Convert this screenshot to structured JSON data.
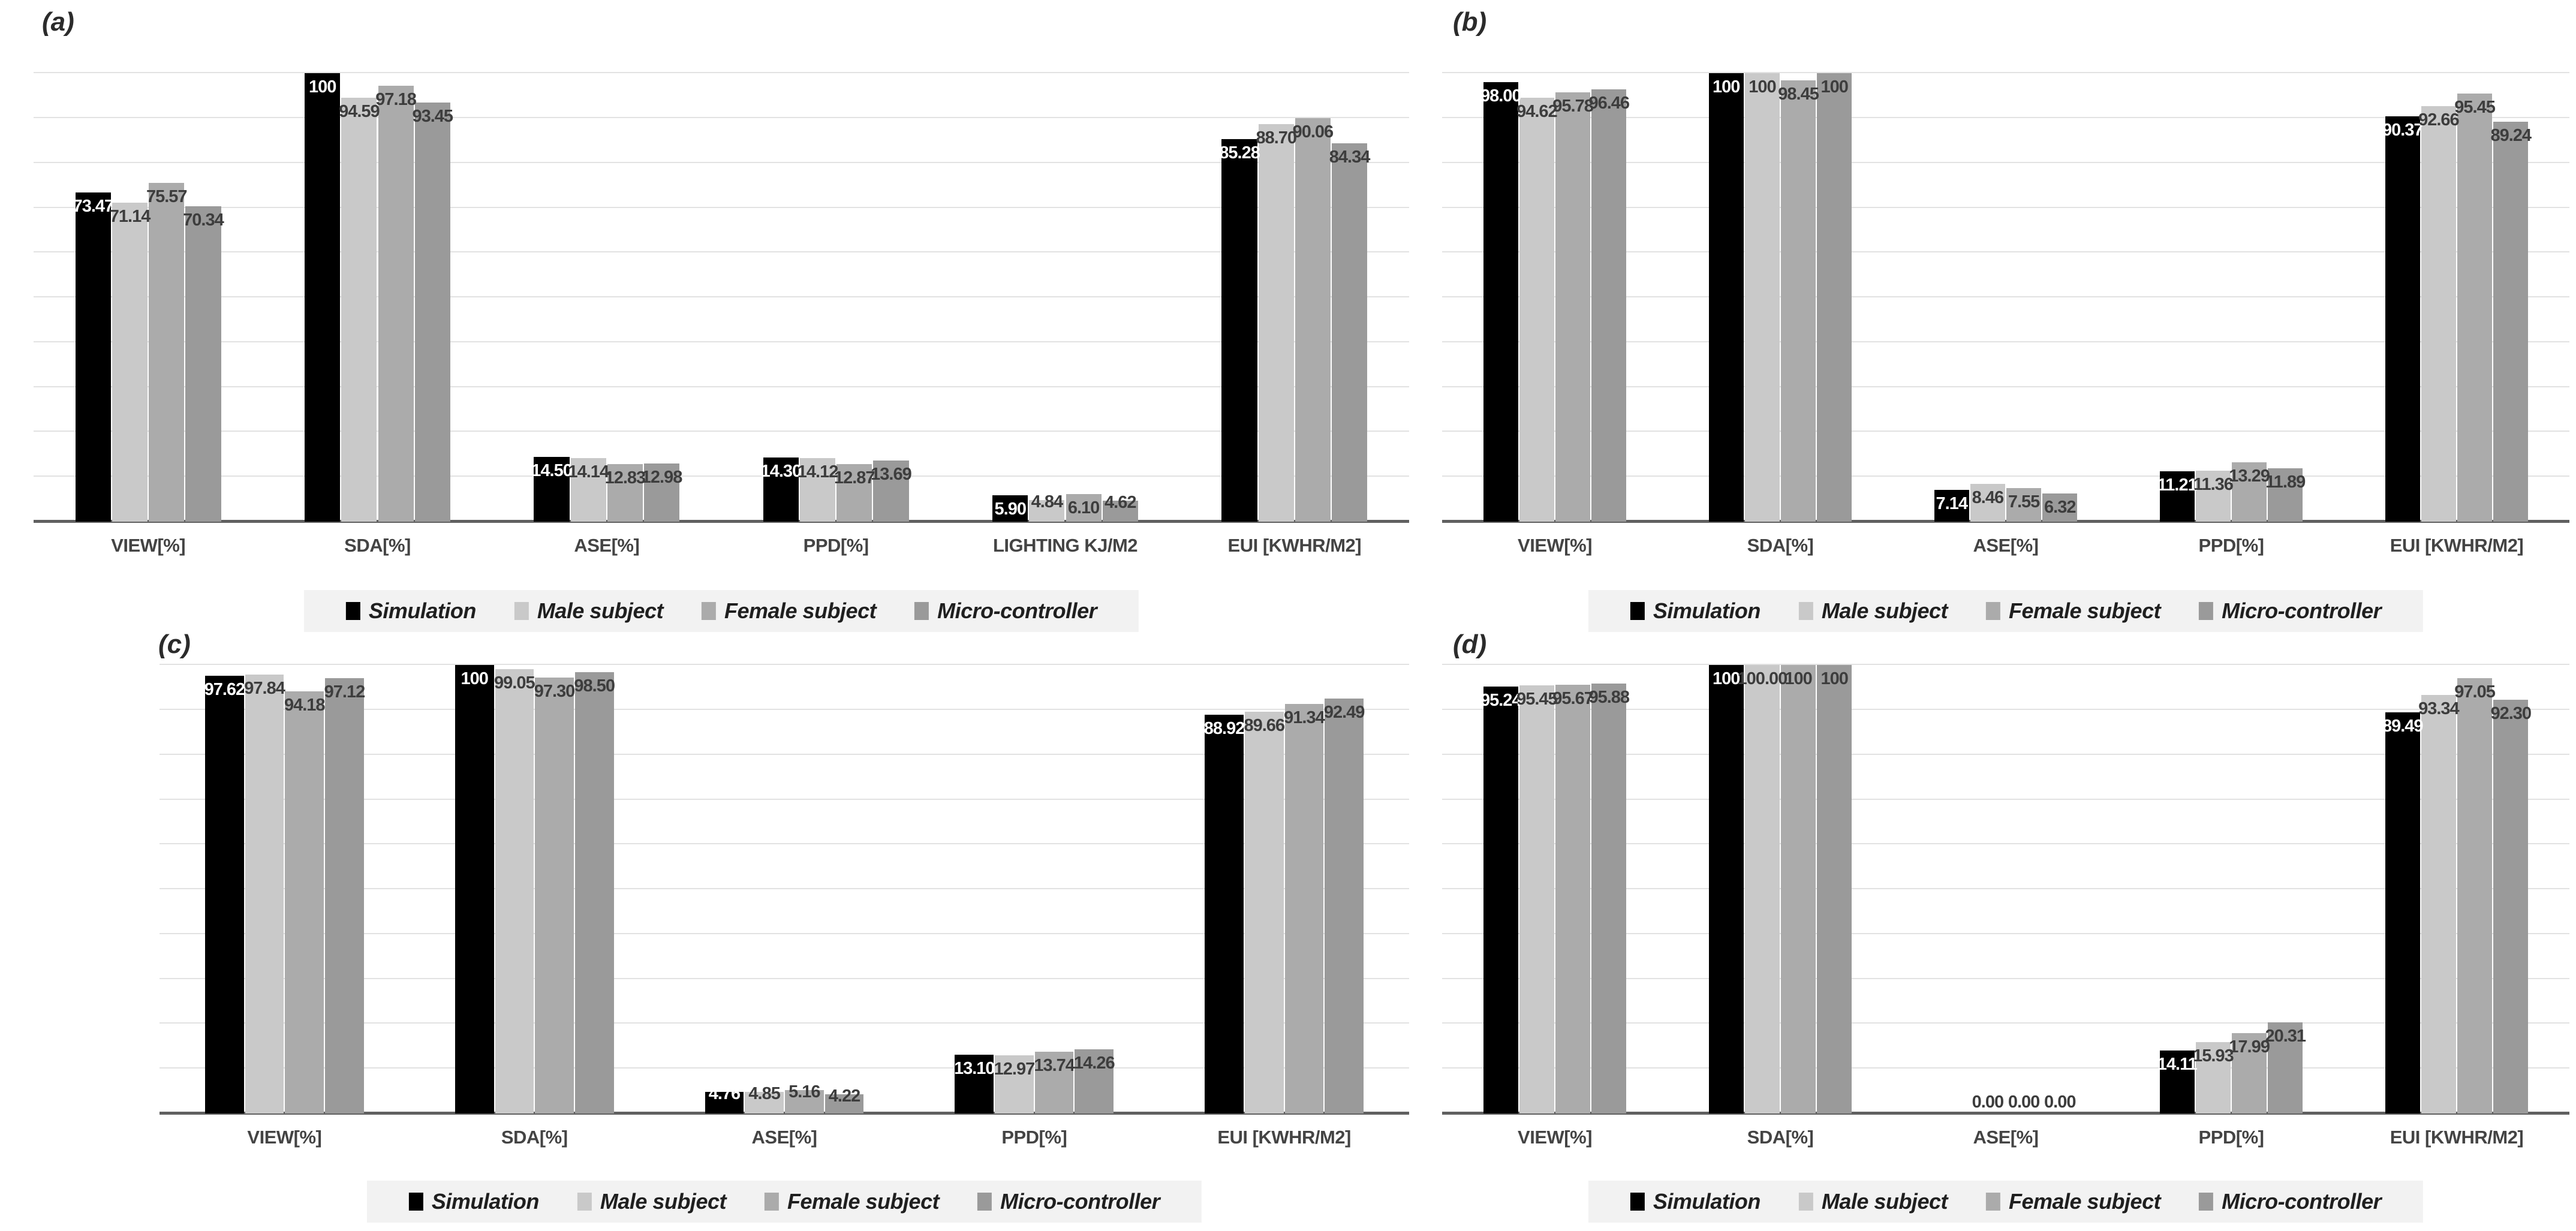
{
  "figure": {
    "background": "#ffffff",
    "gridline_color": "#e2e2e2",
    "axis_line_color": "#606060",
    "legend_strip_color": "#f2f2f2",
    "value_label_color_on_black": "#ffffff",
    "value_label_color_on_gray": "#3d3d3d",
    "category_label_color": "#444444"
  },
  "legend": {
    "items": [
      {
        "label": "Simulation",
        "color": "#000000"
      },
      {
        "label": "Male subject",
        "color": "#c9c9c9"
      },
      {
        "label": "Female subject",
        "color": "#ababab"
      },
      {
        "label": "Micro-controller",
        "color": "#9a9a9a"
      }
    ]
  },
  "chart_data": [
    {
      "panel": "(a)",
      "type": "bar",
      "grid": true,
      "legend_position": "bottom",
      "ylim": [
        0,
        111
      ],
      "gridline_step": 10,
      "categories": [
        "VIEW[%]",
        "SDA[%]",
        "ASE[%]",
        "PPD[%]",
        "LIGHTING KJ/M2",
        "EUI [KWHR/M2]"
      ],
      "series": [
        {
          "name": "Simulation",
          "values": [
            73.47,
            100,
            14.5,
            14.3,
            5.9,
            85.28
          ],
          "labels": [
            "73.47",
            "100",
            "14.50",
            "14.30",
            "5.90",
            "85.28"
          ]
        },
        {
          "name": "Male subject",
          "values": [
            71.14,
            94.59,
            14.14,
            14.12,
            4.84,
            88.7
          ],
          "labels": [
            "71.14",
            "94.59",
            "14.14",
            "14.12",
            "4.84",
            "88.70"
          ]
        },
        {
          "name": "Female subject",
          "values": [
            75.57,
            97.18,
            12.83,
            12.87,
            6.1,
            90.06
          ],
          "labels": [
            "75.57",
            "97.18",
            "12.83",
            "12.87",
            "6.10",
            "90.06"
          ]
        },
        {
          "name": "Micro-controller",
          "values": [
            70.34,
            93.45,
            12.98,
            13.69,
            4.62,
            84.34
          ],
          "labels": [
            "70.34",
            "93.45",
            "12.98",
            "13.69",
            "4.62",
            "84.34"
          ]
        }
      ]
    },
    {
      "panel": "(b)",
      "type": "bar",
      "grid": true,
      "legend_position": "bottom",
      "ylim": [
        0,
        111
      ],
      "gridline_step": 10,
      "categories": [
        "VIEW[%]",
        "SDA[%]",
        "ASE[%]",
        "PPD[%]",
        "EUI [KWHR/M2]"
      ],
      "series": [
        {
          "name": "Simulation",
          "values": [
            98.0,
            100,
            7.14,
            11.21,
            90.37
          ],
          "labels": [
            "98.00",
            "100",
            "7.14",
            "11.21",
            "90.37"
          ]
        },
        {
          "name": "Male subject",
          "values": [
            94.62,
            100,
            8.46,
            11.36,
            92.66
          ],
          "labels": [
            "94.62",
            "100",
            "8.46",
            "11.36",
            "92.66"
          ]
        },
        {
          "name": "Female subject",
          "values": [
            95.78,
            98.45,
            7.55,
            13.29,
            95.45
          ],
          "labels": [
            "95.78",
            "98.45",
            "7.55",
            "13.29",
            "95.45"
          ]
        },
        {
          "name": "Micro-controller",
          "values": [
            96.46,
            100,
            6.32,
            11.89,
            89.24
          ],
          "labels": [
            "96.46",
            "100",
            "6.32",
            "11.89",
            "89.24"
          ]
        }
      ]
    },
    {
      "panel": "(c)",
      "type": "bar",
      "grid": true,
      "legend_position": "bottom",
      "ylim": [
        0,
        111
      ],
      "gridline_step": 10,
      "categories": [
        "VIEW[%]",
        "SDA[%]",
        "ASE[%]",
        "PPD[%]",
        "EUI [KWHR/M2]"
      ],
      "series": [
        {
          "name": "Simulation",
          "values": [
            97.62,
            100,
            4.76,
            13.1,
            88.92
          ],
          "labels": [
            "97.62",
            "100",
            "4.76",
            "13.10",
            "88.92"
          ]
        },
        {
          "name": "Male subject",
          "values": [
            97.84,
            99.05,
            4.85,
            12.97,
            89.66
          ],
          "labels": [
            "97.84",
            "99.05",
            "4.85",
            "12.97",
            "89.66"
          ]
        },
        {
          "name": "Female subject",
          "values": [
            94.18,
            97.3,
            5.16,
            13.74,
            91.34
          ],
          "labels": [
            "94.18",
            "97.30",
            "5.16",
            "13.74",
            "91.34"
          ]
        },
        {
          "name": "Micro-controller",
          "values": [
            97.12,
            98.5,
            4.22,
            14.26,
            92.49
          ],
          "labels": [
            "97.12",
            "98.50",
            "4.22",
            "14.26",
            "92.49"
          ]
        }
      ]
    },
    {
      "panel": "(d)",
      "type": "bar",
      "grid": true,
      "legend_position": "bottom",
      "ylim": [
        0,
        111
      ],
      "gridline_step": 10,
      "categories": [
        "VIEW[%]",
        "SDA[%]",
        "ASE[%]",
        "PPD[%]",
        "EUI [KWHR/M2]"
      ],
      "series": [
        {
          "name": "Simulation",
          "values": [
            95.24,
            100,
            0,
            14.11,
            89.49
          ],
          "labels": [
            "95.24",
            "100",
            "0.00",
            "14.11",
            "89.49"
          ]
        },
        {
          "name": "Male subject",
          "values": [
            95.45,
            100.0,
            0,
            15.93,
            93.34
          ],
          "labels": [
            "95.45",
            "100.00",
            "0.00",
            "15.93",
            "93.34"
          ]
        },
        {
          "name": "Female subject",
          "values": [
            95.67,
            100,
            0,
            17.99,
            97.05
          ],
          "labels": [
            "95.67",
            "100",
            "0.00",
            "17.99",
            "97.05"
          ]
        },
        {
          "name": "Micro-controller",
          "values": [
            95.88,
            100,
            0,
            20.31,
            92.3
          ],
          "labels": [
            "95.88",
            "100",
            "0.00",
            "20.31",
            "92.30"
          ]
        }
      ]
    }
  ]
}
